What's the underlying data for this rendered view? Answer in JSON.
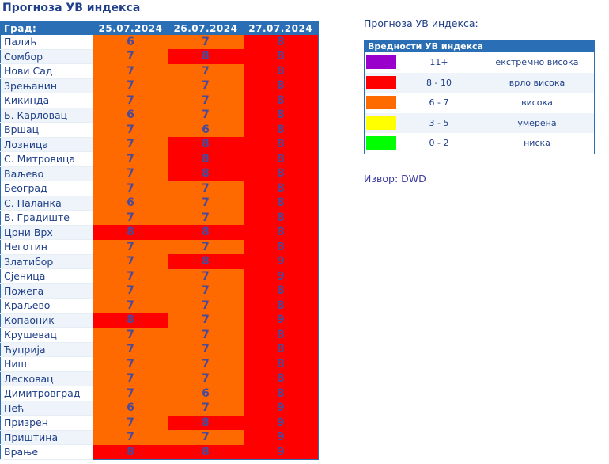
{
  "title": "Прогноза УВ индекса",
  "table": {
    "city_header": "Град:",
    "dates": [
      "25.07.2024",
      "26.07.2024",
      "27.07.2024"
    ],
    "rows": [
      {
        "city": "Палић",
        "values": [
          "6",
          "7",
          "8"
        ]
      },
      {
        "city": "Сомбор",
        "values": [
          "7",
          "8",
          "8"
        ]
      },
      {
        "city": "Нови Сад",
        "values": [
          "7",
          "7",
          "8"
        ]
      },
      {
        "city": "Зрењанин",
        "values": [
          "7",
          "7",
          "8"
        ]
      },
      {
        "city": "Кикинда",
        "values": [
          "7",
          "7",
          "8"
        ]
      },
      {
        "city": "Б. Карловац",
        "values": [
          "6",
          "7",
          "8"
        ]
      },
      {
        "city": "Вршац",
        "values": [
          "7",
          "6",
          "8"
        ]
      },
      {
        "city": "Лозница",
        "values": [
          "7",
          "8",
          "8"
        ]
      },
      {
        "city": "С. Митровица",
        "values": [
          "7",
          "8",
          "8"
        ]
      },
      {
        "city": "Ваљево",
        "values": [
          "7",
          "8",
          "8"
        ]
      },
      {
        "city": "Београд",
        "values": [
          "7",
          "7",
          "8"
        ]
      },
      {
        "city": "С. Паланка",
        "values": [
          "6",
          "7",
          "8"
        ]
      },
      {
        "city": "В. Градиште",
        "values": [
          "7",
          "7",
          "8"
        ]
      },
      {
        "city": "Црни Врх",
        "values": [
          "8",
          "8",
          "8"
        ]
      },
      {
        "city": "Неготин",
        "values": [
          "7",
          "7",
          "8"
        ]
      },
      {
        "city": "Златибор",
        "values": [
          "7",
          "8",
          "9"
        ]
      },
      {
        "city": "Сјеница",
        "values": [
          "7",
          "7",
          "9"
        ]
      },
      {
        "city": "Пожега",
        "values": [
          "7",
          "7",
          "8"
        ]
      },
      {
        "city": "Краљево",
        "values": [
          "7",
          "7",
          "8"
        ]
      },
      {
        "city": "Копаоник",
        "values": [
          "8",
          "7",
          "9"
        ]
      },
      {
        "city": "Крушевац",
        "values": [
          "7",
          "7",
          "8"
        ]
      },
      {
        "city": "Ћуприја",
        "values": [
          "7",
          "7",
          "8"
        ]
      },
      {
        "city": "Ниш",
        "values": [
          "7",
          "7",
          "8"
        ]
      },
      {
        "city": "Лесковац",
        "values": [
          "7",
          "7",
          "8"
        ]
      },
      {
        "city": "Димитровград",
        "values": [
          "7",
          "6",
          "8"
        ]
      },
      {
        "city": "Пећ",
        "values": [
          "6",
          "7",
          "9"
        ]
      },
      {
        "city": "Призрен",
        "values": [
          "7",
          "8",
          "9"
        ]
      },
      {
        "city": "Приштина",
        "values": [
          "7",
          "7",
          "9"
        ]
      },
      {
        "city": "Врање",
        "values": [
          "8",
          "8",
          "9"
        ]
      }
    ]
  },
  "legend": {
    "title": "Прогноза УВ индекса:",
    "header": "Вредности УВ индекса",
    "items": [
      {
        "range": "11+",
        "label": "екстремно висока",
        "color": "#9900cc"
      },
      {
        "range": "8 - 10",
        "label": "врло висока",
        "color": "#ff0000"
      },
      {
        "range": "6 - 7",
        "label": "висока",
        "color": "#ff6a00"
      },
      {
        "range": "3 - 5",
        "label": "умерена",
        "color": "#ffff00"
      },
      {
        "range": "0 - 2",
        "label": "ниска",
        "color": "#00ff00"
      }
    ]
  },
  "source": "Извор: DWD"
}
